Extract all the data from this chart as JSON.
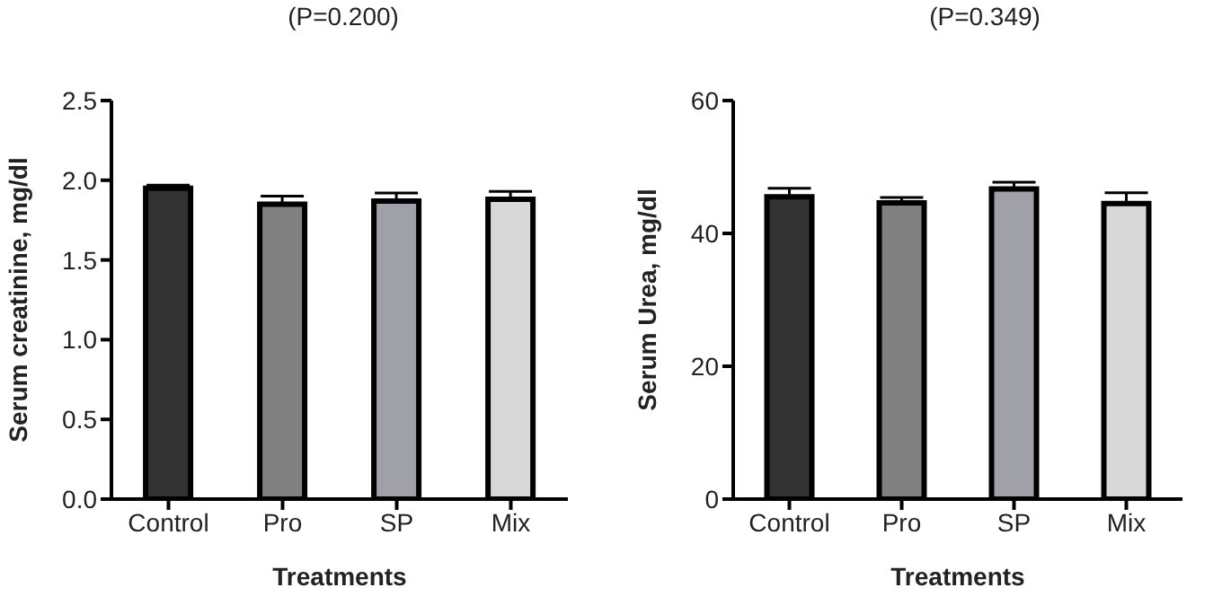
{
  "chart_data": [
    {
      "type": "bar",
      "title": "(P=0.200)",
      "xlabel": "Treatments",
      "ylabel": "Serum creatinine, mg/dl",
      "categories": [
        "Control",
        "Pro",
        "SP",
        "Mix"
      ],
      "values": [
        1.95,
        1.85,
        1.87,
        1.88
      ],
      "colors": [
        "#333333",
        "#808080",
        "#a0a0a8",
        "#d8d8d8"
      ],
      "errors": [
        [
          1.95,
          1.97
        ],
        [
          1.85,
          1.9
        ],
        [
          1.87,
          1.92
        ],
        [
          1.88,
          1.93
        ]
      ],
      "ylim": [
        0,
        2.5
      ],
      "yticks": [
        {
          "value": 0,
          "label": "0.0"
        },
        0.5,
        {
          "value": 1,
          "label": "1.0"
        },
        1.5,
        {
          "value": 2,
          "label": "2.0"
        },
        2.5
      ],
      "grid": false,
      "legend": false
    },
    {
      "type": "bar",
      "title": "(P=0.349)",
      "xlabel": "Treatments",
      "ylabel": "Serum Urea, mg/dl",
      "categories": [
        "Control",
        "Pro",
        "SP",
        "Mix"
      ],
      "values": [
        45.5,
        44.6,
        46.7,
        44.5
      ],
      "colors": [
        "#333333",
        "#808080",
        "#a0a0a8",
        "#d8d8d8"
      ],
      "errors": [
        [
          45.5,
          46.8
        ],
        [
          44.6,
          45.4
        ],
        [
          46.7,
          47.7
        ],
        [
          44.5,
          46.1
        ]
      ],
      "ylim": [
        0,
        60
      ],
      "yticks": [
        0,
        20,
        40,
        60
      ],
      "grid": false,
      "legend": false
    }
  ]
}
